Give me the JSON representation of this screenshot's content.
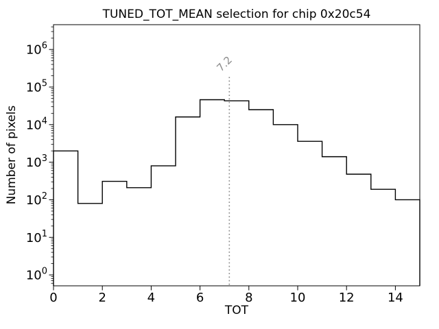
{
  "chart_data": {
    "type": "bar",
    "subtype": "step-histogram",
    "title": "TUNED_TOT_MEAN selection for chip 0x20c54",
    "xlabel": "TOT",
    "ylabel": "Number of pixels",
    "yscale": "log",
    "grid": false,
    "xlim": [
      0,
      15
    ],
    "ylim_log10": [
      -0.29,
      6.66
    ],
    "x_ticks": [
      0,
      2,
      4,
      6,
      8,
      10,
      12,
      14
    ],
    "y_tick_exponents": [
      0,
      1,
      2,
      3,
      4,
      5,
      6
    ],
    "bin_edges": [
      0,
      1,
      2,
      3,
      4,
      5,
      6,
      7,
      8,
      9,
      10,
      11,
      12,
      13,
      14,
      15
    ],
    "counts": [
      2000,
      80,
      310,
      210,
      800,
      16000,
      46000,
      43000,
      25000,
      10000,
      3600,
      1400,
      480,
      190,
      100
    ],
    "line_color": "#000000",
    "vline": {
      "x": 7.2,
      "label": "7.2",
      "color": "#8c8c8c",
      "style": "dotted",
      "ymax_fraction": 0.8,
      "label_rotation_deg": 45
    }
  }
}
